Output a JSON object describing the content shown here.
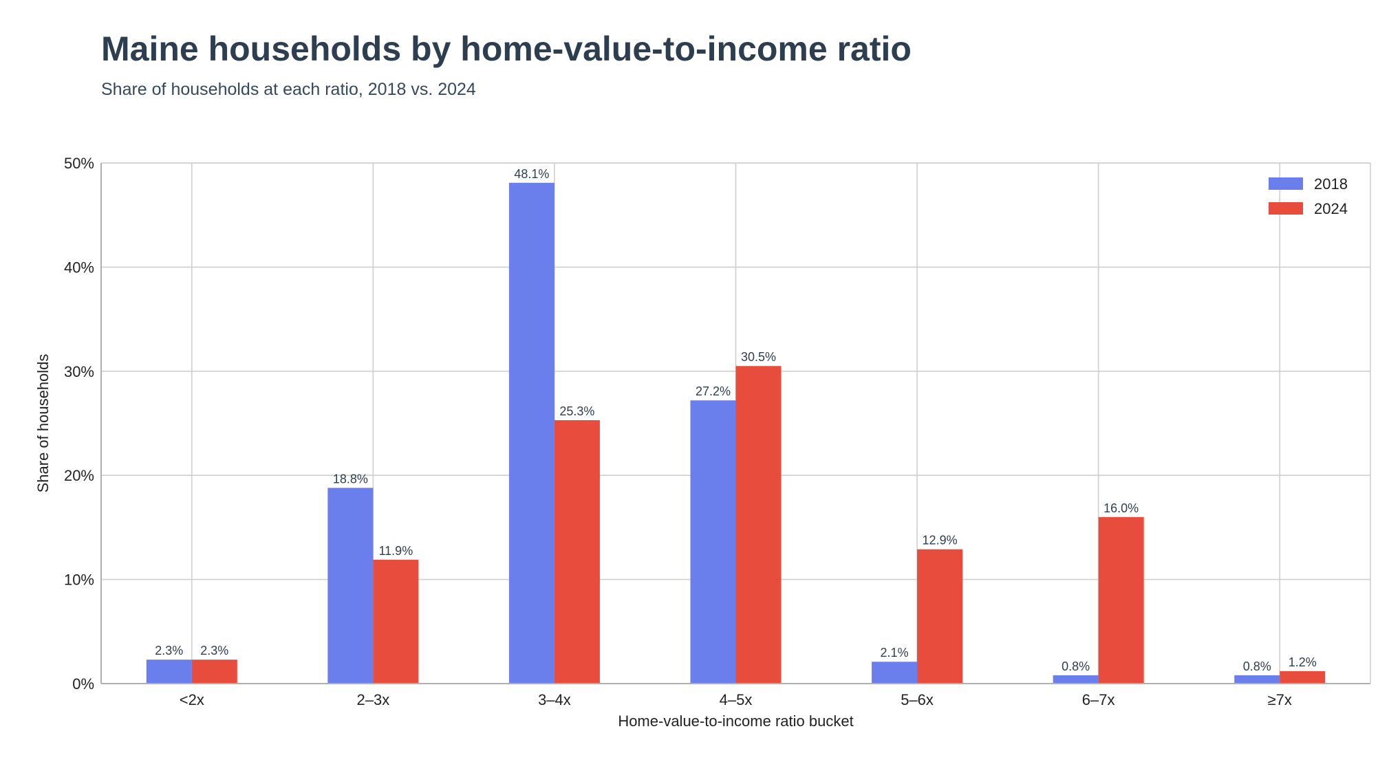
{
  "chart_data": {
    "type": "bar",
    "title": "Maine households by home-value-to-income ratio",
    "subtitle": "Share of households at each ratio, 2018 vs. 2024",
    "xlabel": "Home-value-to-income ratio bucket",
    "ylabel": "Share of households",
    "categories": [
      "<2x",
      "2–3x",
      "3–4x",
      "4–5x",
      "5–6x",
      "6–7x",
      "≥7x"
    ],
    "series": [
      {
        "name": "2018",
        "color": "#6a7fec",
        "values": [
          2.3,
          18.8,
          48.1,
          27.2,
          2.1,
          0.8,
          0.8
        ],
        "labels": [
          "2.3%",
          "18.8%",
          "48.1%",
          "27.2%",
          "2.1%",
          "0.8%",
          "0.8%"
        ]
      },
      {
        "name": "2024",
        "color": "#e74c3c",
        "values": [
          2.3,
          11.9,
          25.3,
          30.5,
          12.9,
          16.0,
          1.2
        ],
        "labels": [
          "2.3%",
          "11.9%",
          "25.3%",
          "30.5%",
          "12.9%",
          "16.0%",
          "1.2%"
        ]
      }
    ],
    "ylim": [
      0,
      50
    ],
    "yticks": [
      0,
      10,
      20,
      30,
      40,
      50
    ],
    "ytick_labels": [
      "0%",
      "10%",
      "20%",
      "30%",
      "40%",
      "50%"
    ],
    "grid": true,
    "legend_position": "top-right"
  }
}
